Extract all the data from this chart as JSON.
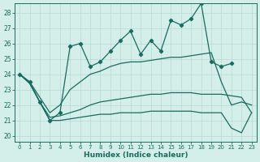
{
  "xlabel": "Humidex (Indice chaleur)",
  "bg_color": "#d4eeea",
  "grid_color": "#b8d8d4",
  "line_color": "#1a6b5e",
  "xlim": [
    -0.5,
    23.5
  ],
  "ylim": [
    19.6,
    28.6
  ],
  "yticks": [
    20,
    21,
    22,
    23,
    24,
    25,
    26,
    27,
    28
  ],
  "xticks": [
    0,
    1,
    2,
    3,
    4,
    5,
    6,
    7,
    8,
    9,
    10,
    11,
    12,
    13,
    14,
    15,
    16,
    17,
    18,
    19,
    20,
    21,
    22,
    23
  ],
  "line_jagged": [
    24.0,
    23.5,
    22.2,
    21.0,
    21.5,
    25.8,
    26.0,
    24.5,
    24.8,
    25.5,
    26.2,
    26.8,
    25.3,
    26.2,
    25.5,
    27.5,
    27.2,
    27.6,
    28.6,
    24.8,
    24.5,
    24.7,
    null,
    null
  ],
  "line_upper_smooth": [
    24.0,
    23.5,
    22.5,
    21.5,
    22.0,
    23.0,
    23.5,
    24.0,
    24.2,
    24.5,
    24.7,
    24.8,
    24.8,
    24.9,
    25.0,
    25.1,
    25.1,
    25.2,
    25.3,
    25.4,
    23.5,
    22.0,
    22.2,
    22.0
  ],
  "line_mid_smooth": [
    24.0,
    23.4,
    22.2,
    21.2,
    21.3,
    21.5,
    21.7,
    22.0,
    22.2,
    22.3,
    22.4,
    22.5,
    22.6,
    22.7,
    22.7,
    22.8,
    22.8,
    22.8,
    22.7,
    22.7,
    22.7,
    22.6,
    22.5,
    21.5
  ],
  "line_lower_smooth": [
    24.0,
    23.4,
    22.2,
    21.0,
    21.0,
    21.1,
    21.2,
    21.3,
    21.4,
    21.4,
    21.5,
    21.5,
    21.5,
    21.6,
    21.6,
    21.6,
    21.6,
    21.6,
    21.5,
    21.5,
    21.5,
    20.5,
    20.2,
    21.5
  ]
}
